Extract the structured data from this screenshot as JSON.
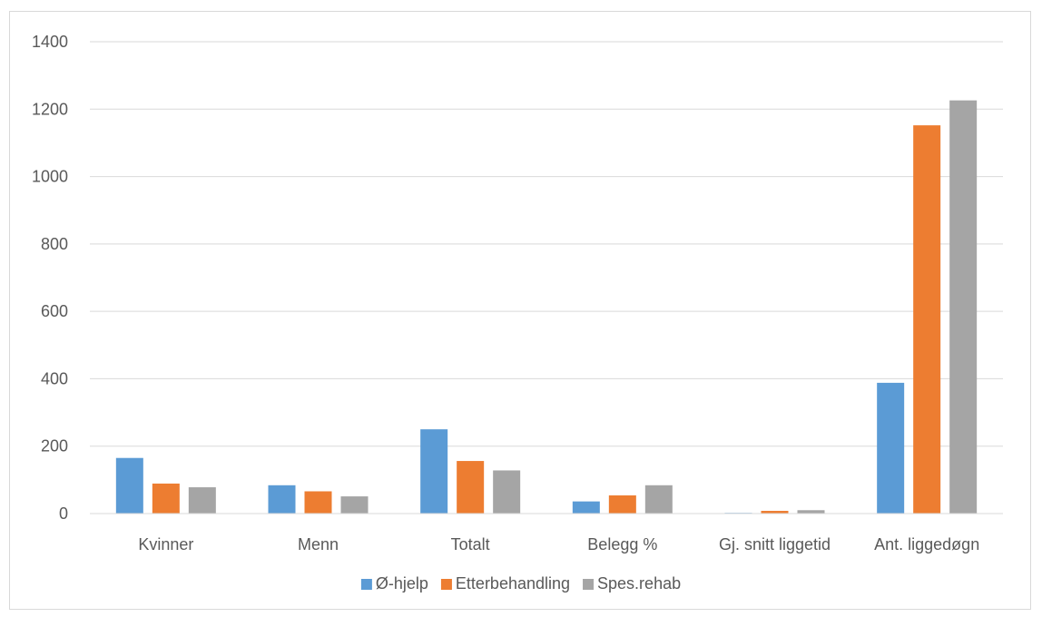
{
  "chart_data": {
    "type": "bar",
    "categories": [
      "Kvinner",
      "Menn",
      "Totalt",
      "Belegg %",
      "Gj. snitt liggetid",
      "Ant. liggedøgn"
    ],
    "series": [
      {
        "name": "Ø-hjelp",
        "color": "#5b9bd5",
        "values": [
          165,
          84,
          250,
          36,
          2,
          388
        ]
      },
      {
        "name": "Etterbehandling",
        "color": "#ed7d31",
        "values": [
          89,
          66,
          156,
          54,
          8,
          1152
        ]
      },
      {
        "name": "Spes.rehab",
        "color": "#a5a5a5",
        "values": [
          78,
          51,
          128,
          84,
          10,
          1226
        ]
      }
    ],
    "ylim": [
      0,
      1400
    ],
    "yticks": [
      0,
      200,
      400,
      600,
      800,
      1000,
      1200,
      1400
    ],
    "grid": true,
    "legend": "bottom"
  }
}
